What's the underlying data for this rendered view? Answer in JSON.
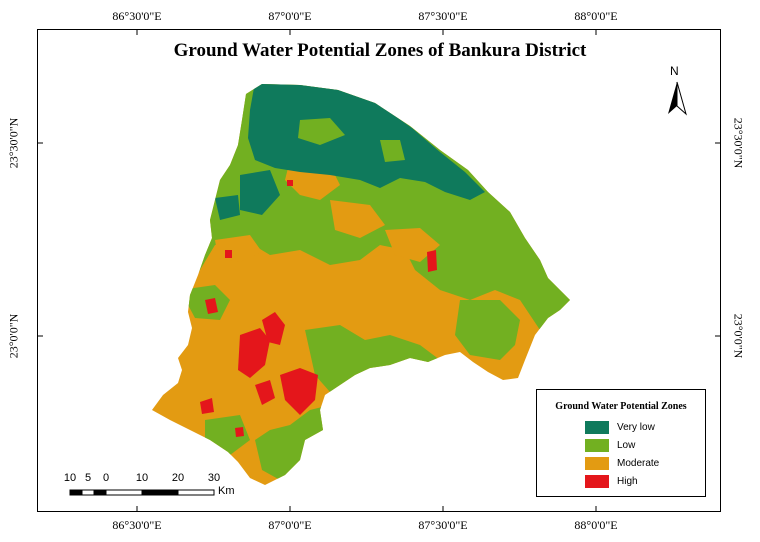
{
  "map": {
    "title": "Ground Water Potential Zones of Bankura District",
    "north_label": "N",
    "longitude_labels": [
      "86°30'0\"E",
      "87°0'0\"E",
      "87°30'0\"E",
      "88°0'0\"E"
    ],
    "latitude_labels": [
      "23°30'0\"N",
      "23°0'0\"N"
    ]
  },
  "legend": {
    "title": "Ground Water Potential Zones",
    "items": [
      {
        "label": "Very low",
        "color": "#0f7a5c"
      },
      {
        "label": "Low",
        "color": "#72b021"
      },
      {
        "label": "Moderate",
        "color": "#e39b12"
      },
      {
        "label": "High",
        "color": "#e4161b"
      }
    ]
  },
  "scale_bar": {
    "labels": [
      "10",
      "5",
      "0",
      "10",
      "20",
      "30"
    ],
    "unit": "Km"
  },
  "colors": {
    "very_low": "#0f7a5c",
    "low": "#72b021",
    "moderate": "#e39b12",
    "high": "#e4161b"
  }
}
